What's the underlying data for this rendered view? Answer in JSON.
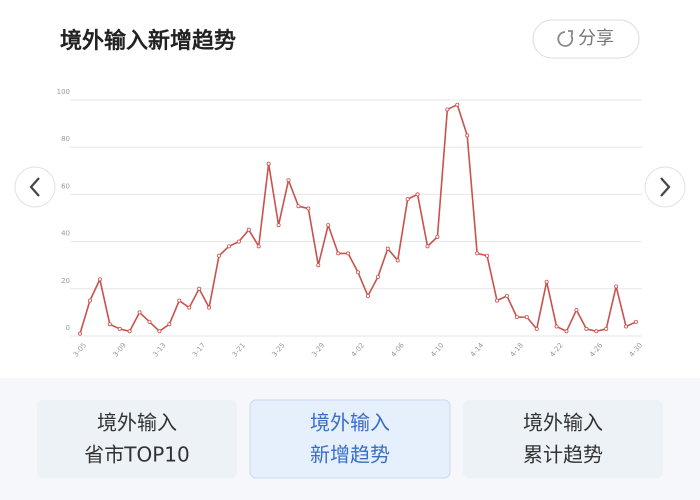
{
  "header": {
    "title": "境外输入新增趋势",
    "share": "分享"
  },
  "chart_data": {
    "type": "line",
    "categories": [
      "3-05",
      null,
      null,
      null,
      "3-09",
      null,
      null,
      null,
      "3-13",
      null,
      null,
      null,
      "3-17",
      null,
      null,
      null,
      "3-21",
      null,
      null,
      null,
      "3-25",
      null,
      null,
      null,
      "3-29",
      null,
      null,
      null,
      "4-02",
      null,
      null,
      null,
      "4-06",
      null,
      null,
      null,
      "4-10",
      null,
      null,
      null,
      "4-14",
      null,
      null,
      null,
      "4-18",
      null,
      null,
      null,
      "4-22",
      null,
      null,
      null,
      "4-26",
      null,
      null,
      null,
      "4-30"
    ],
    "series": [
      {
        "name": "新增",
        "color": "#c9524d",
        "values": [
          1,
          15,
          24,
          5,
          3,
          2,
          10,
          6,
          2,
          5,
          15,
          12,
          20,
          12,
          34,
          38,
          40,
          45,
          38,
          73,
          47,
          66,
          55,
          54,
          30,
          47,
          35,
          35,
          27,
          17,
          25,
          37,
          32,
          58,
          60,
          38,
          42,
          96,
          98,
          85,
          35,
          34,
          15,
          17,
          8,
          8,
          3,
          23,
          4,
          2,
          11,
          3,
          2,
          3,
          21,
          4,
          6
        ]
      }
    ],
    "ylim": [
      0,
      100
    ],
    "yticks": [
      0,
      20,
      40,
      60,
      80,
      100
    ],
    "grid": true
  },
  "tabs": [
    {
      "lines": [
        "境外输入",
        "省市TOP10"
      ]
    },
    {
      "lines": [
        "境外输入",
        "新增趋势"
      ]
    },
    {
      "lines": [
        "境外输入",
        "累计趋势"
      ]
    }
  ],
  "active_tab": 1
}
